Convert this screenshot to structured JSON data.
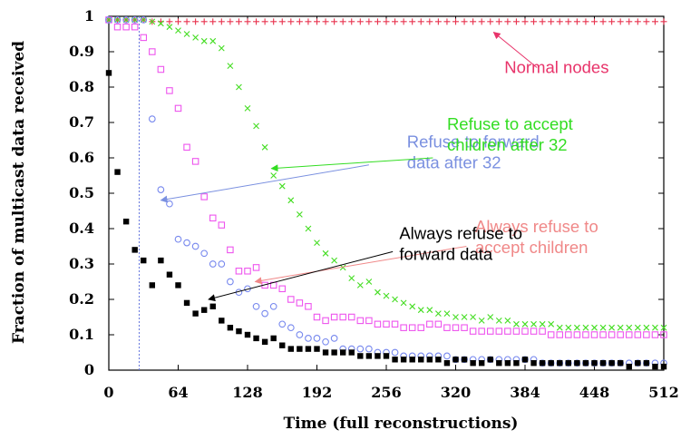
{
  "chart_data": {
    "type": "scatter",
    "title": "",
    "xlabel": "Time (full reconstructions)",
    "ylabel": "Fraction of multicast data received",
    "xlim": [
      0,
      512
    ],
    "ylim": [
      0,
      1
    ],
    "xticks": [
      "0",
      "64",
      "128",
      "192",
      "256",
      "320",
      "384",
      "448",
      "512"
    ],
    "yticks": [
      "0",
      "0.1",
      "0.2",
      "0.3",
      "0.4",
      "0.5",
      "0.6",
      "0.7",
      "0.8",
      "0.9",
      "1"
    ],
    "vline_x": 28,
    "series": [
      {
        "name": "Normal nodes",
        "marker": "plus",
        "color": "#e8334f",
        "x": [
          0,
          8,
          16,
          24,
          32,
          40,
          48,
          56,
          64,
          72,
          80,
          88,
          96,
          104,
          112,
          120,
          128,
          136,
          144,
          152,
          160,
          168,
          176,
          184,
          192,
          200,
          208,
          216,
          224,
          232,
          240,
          248,
          256,
          264,
          272,
          280,
          288,
          296,
          304,
          312,
          320,
          328,
          336,
          344,
          352,
          360,
          368,
          376,
          384,
          392,
          400,
          408,
          416,
          424,
          432,
          440,
          448,
          456,
          464,
          472,
          480,
          488,
          496,
          504,
          512
        ],
        "y": [
          0.99,
          0.99,
          0.99,
          0.99,
          0.99,
          0.985,
          0.985,
          0.985,
          0.985,
          0.985,
          0.985,
          0.985,
          0.985,
          0.985,
          0.985,
          0.985,
          0.985,
          0.985,
          0.985,
          0.985,
          0.985,
          0.985,
          0.985,
          0.985,
          0.985,
          0.985,
          0.985,
          0.985,
          0.985,
          0.985,
          0.985,
          0.985,
          0.985,
          0.985,
          0.985,
          0.985,
          0.985,
          0.985,
          0.985,
          0.985,
          0.985,
          0.985,
          0.985,
          0.985,
          0.985,
          0.985,
          0.985,
          0.985,
          0.985,
          0.985,
          0.985,
          0.985,
          0.985,
          0.985,
          0.985,
          0.985,
          0.985,
          0.985,
          0.985,
          0.985,
          0.985,
          0.985,
          0.985,
          0.985,
          0.985
        ]
      },
      {
        "name": "Refuse to accept children after 32",
        "marker": "cross",
        "color": "#44dd22",
        "x": [
          0,
          8,
          16,
          24,
          32,
          40,
          48,
          56,
          64,
          72,
          80,
          88,
          96,
          104,
          112,
          120,
          128,
          136,
          144,
          152,
          160,
          168,
          176,
          184,
          192,
          200,
          208,
          216,
          224,
          232,
          240,
          248,
          256,
          264,
          272,
          280,
          288,
          296,
          304,
          312,
          320,
          328,
          336,
          344,
          352,
          360,
          368,
          376,
          384,
          392,
          400,
          408,
          416,
          424,
          432,
          440,
          448,
          456,
          464,
          472,
          480,
          488,
          496,
          504,
          512
        ],
        "y": [
          0.99,
          0.99,
          0.99,
          0.99,
          0.99,
          0.985,
          0.98,
          0.97,
          0.96,
          0.95,
          0.94,
          0.93,
          0.93,
          0.91,
          0.86,
          0.8,
          0.74,
          0.69,
          0.63,
          0.55,
          0.52,
          0.48,
          0.44,
          0.4,
          0.36,
          0.33,
          0.31,
          0.29,
          0.26,
          0.24,
          0.25,
          0.22,
          0.21,
          0.2,
          0.19,
          0.18,
          0.17,
          0.17,
          0.16,
          0.16,
          0.15,
          0.15,
          0.15,
          0.14,
          0.15,
          0.14,
          0.14,
          0.13,
          0.13,
          0.13,
          0.13,
          0.13,
          0.12,
          0.12,
          0.12,
          0.12,
          0.12,
          0.12,
          0.12,
          0.12,
          0.12,
          0.12,
          0.12,
          0.12,
          0.12
        ]
      },
      {
        "name": "Always refuse to accept children",
        "marker": "square",
        "color": "#ee55ee",
        "x": [
          0,
          8,
          16,
          24,
          32,
          40,
          48,
          56,
          64,
          72,
          80,
          88,
          96,
          104,
          112,
          120,
          128,
          136,
          144,
          152,
          160,
          168,
          176,
          184,
          192,
          200,
          208,
          216,
          224,
          232,
          240,
          248,
          256,
          264,
          272,
          280,
          288,
          296,
          304,
          312,
          320,
          328,
          336,
          344,
          352,
          360,
          368,
          376,
          384,
          392,
          400,
          408,
          416,
          424,
          432,
          440,
          448,
          456,
          464,
          472,
          480,
          488,
          496,
          504,
          512
        ],
        "y": [
          0.99,
          0.97,
          0.97,
          0.97,
          0.94,
          0.9,
          0.85,
          0.79,
          0.74,
          0.63,
          0.59,
          0.49,
          0.43,
          0.41,
          0.34,
          0.28,
          0.28,
          0.29,
          0.24,
          0.24,
          0.23,
          0.2,
          0.19,
          0.18,
          0.15,
          0.14,
          0.15,
          0.15,
          0.15,
          0.14,
          0.14,
          0.13,
          0.13,
          0.13,
          0.12,
          0.12,
          0.12,
          0.13,
          0.13,
          0.12,
          0.12,
          0.12,
          0.11,
          0.11,
          0.11,
          0.11,
          0.11,
          0.11,
          0.11,
          0.11,
          0.11,
          0.1,
          0.1,
          0.1,
          0.1,
          0.1,
          0.1,
          0.1,
          0.1,
          0.1,
          0.1,
          0.1,
          0.1,
          0.1,
          0.1
        ]
      },
      {
        "name": "Refuse to forward data after 32",
        "marker": "circle",
        "color": "#7788ee",
        "x": [
          0,
          8,
          16,
          24,
          32,
          40,
          48,
          56,
          64,
          72,
          80,
          88,
          96,
          104,
          112,
          120,
          128,
          136,
          144,
          152,
          160,
          168,
          176,
          184,
          192,
          200,
          208,
          216,
          224,
          232,
          240,
          248,
          256,
          264,
          272,
          280,
          288,
          296,
          304,
          312,
          320,
          328,
          336,
          344,
          352,
          360,
          368,
          376,
          384,
          392,
          400,
          408,
          416,
          424,
          432,
          440,
          448,
          456,
          464,
          472,
          480,
          488,
          496,
          504,
          512
        ],
        "y": [
          0.99,
          0.99,
          0.99,
          0.99,
          0.99,
          0.71,
          0.51,
          0.47,
          0.37,
          0.36,
          0.35,
          0.33,
          0.3,
          0.3,
          0.25,
          0.22,
          0.23,
          0.18,
          0.16,
          0.18,
          0.13,
          0.12,
          0.1,
          0.09,
          0.09,
          0.08,
          0.09,
          0.06,
          0.06,
          0.06,
          0.06,
          0.05,
          0.05,
          0.05,
          0.04,
          0.04,
          0.04,
          0.04,
          0.04,
          0.04,
          0.03,
          0.03,
          0.03,
          0.03,
          0.03,
          0.03,
          0.03,
          0.03,
          0.03,
          0.03,
          0.02,
          0.02,
          0.02,
          0.02,
          0.02,
          0.02,
          0.02,
          0.02,
          0.02,
          0.02,
          0.02,
          0.02,
          0.02,
          0.02,
          0.02
        ]
      },
      {
        "name": "Always refuse to forward data",
        "marker": "filled-square",
        "color": "#000000",
        "x": [
          0,
          8,
          16,
          24,
          32,
          40,
          48,
          56,
          64,
          72,
          80,
          88,
          96,
          104,
          112,
          120,
          128,
          136,
          144,
          152,
          160,
          168,
          176,
          184,
          192,
          200,
          208,
          216,
          224,
          232,
          240,
          248,
          256,
          264,
          272,
          280,
          288,
          296,
          304,
          312,
          320,
          328,
          336,
          344,
          352,
          360,
          368,
          376,
          384,
          392,
          400,
          408,
          416,
          424,
          432,
          440,
          448,
          456,
          464,
          472,
          480,
          488,
          496,
          504,
          512
        ],
        "y": [
          0.84,
          0.56,
          0.42,
          0.34,
          0.31,
          0.24,
          0.31,
          0.27,
          0.24,
          0.19,
          0.16,
          0.17,
          0.18,
          0.14,
          0.12,
          0.11,
          0.1,
          0.09,
          0.08,
          0.09,
          0.07,
          0.06,
          0.06,
          0.06,
          0.06,
          0.05,
          0.05,
          0.05,
          0.05,
          0.04,
          0.04,
          0.04,
          0.04,
          0.03,
          0.03,
          0.03,
          0.03,
          0.03,
          0.03,
          0.02,
          0.03,
          0.03,
          0.02,
          0.02,
          0.03,
          0.02,
          0.02,
          0.02,
          0.03,
          0.02,
          0.02,
          0.02,
          0.02,
          0.02,
          0.02,
          0.02,
          0.02,
          0.02,
          0.02,
          0.02,
          0.01,
          0.02,
          0.02,
          0.01,
          0.01
        ]
      }
    ],
    "annotations": [
      {
        "id": "normal",
        "lines": [
          "Normal nodes"
        ],
        "color": "#e8336a",
        "text_x": 365,
        "text_y": 0.84,
        "arrow_from": [
          0.84,
          0.0
        ],
        "arrow_to": [
          355,
          0.955
        ]
      },
      {
        "id": "accept",
        "lines": [
          "Refuse to accept",
          "children after 32"
        ],
        "color": "#33dd22",
        "text_x": 312,
        "text_y": 0.68,
        "arrow_from": [
          299,
          0.6
        ],
        "arrow_to": [
          150,
          0.57
        ]
      },
      {
        "id": "forward",
        "lines": [
          "Refuse to forward",
          "data after 32"
        ],
        "color": "#7a90e0",
        "text_x": 275,
        "text_y": 0.63,
        "arrow_from": [
          240,
          0.58
        ],
        "arrow_to": [
          48,
          0.48
        ]
      },
      {
        "id": "always_accept",
        "lines": [
          "Always refuse to",
          "accept children"
        ],
        "color": "#f08888",
        "text_x": 338,
        "text_y": 0.39,
        "arrow_from": [
          330,
          0.35
        ],
        "arrow_to": [
          135,
          0.25
        ]
      },
      {
        "id": "always_forward",
        "lines": [
          "Always refuse to",
          "forward data"
        ],
        "color": "#000000",
        "text_x": 268,
        "text_y": 0.37,
        "arrow_from": [
          262,
          0.335
        ],
        "arrow_to": [
          92,
          0.2
        ]
      }
    ]
  }
}
